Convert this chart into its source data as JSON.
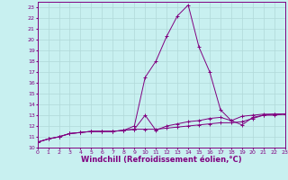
{
  "title": "",
  "xlabel": "Windchill (Refroidissement éolien,°C)",
  "ylabel": "",
  "background_color": "#c8f0f0",
  "line_color": "#800080",
  "grid_color": "#b0d8d8",
  "x_data": [
    0,
    1,
    2,
    3,
    4,
    5,
    6,
    7,
    8,
    9,
    10,
    11,
    12,
    13,
    14,
    15,
    16,
    17,
    18,
    19,
    20,
    21,
    22,
    23
  ],
  "series": [
    [
      10.5,
      10.8,
      11.0,
      11.3,
      11.4,
      11.5,
      11.5,
      11.5,
      11.6,
      11.7,
      11.7,
      11.7,
      11.8,
      11.9,
      12.0,
      12.1,
      12.2,
      12.3,
      12.3,
      12.4,
      12.7,
      13.0,
      13.1,
      13.1
    ],
    [
      10.5,
      10.8,
      11.0,
      11.3,
      11.4,
      11.5,
      11.5,
      11.5,
      11.6,
      12.0,
      16.5,
      18.0,
      20.3,
      22.2,
      23.2,
      19.3,
      17.0,
      13.5,
      12.5,
      12.1,
      12.8,
      13.0,
      13.0,
      13.1
    ],
    [
      10.5,
      10.8,
      11.0,
      11.3,
      11.4,
      11.5,
      11.5,
      11.5,
      11.6,
      11.7,
      13.0,
      11.6,
      12.0,
      12.2,
      12.4,
      12.5,
      12.7,
      12.8,
      12.5,
      12.9,
      13.0,
      13.1,
      13.1,
      13.1
    ]
  ],
  "xlim": [
    0,
    23
  ],
  "ylim": [
    10,
    23.5
  ],
  "yticks": [
    10,
    11,
    12,
    13,
    14,
    15,
    16,
    17,
    18,
    19,
    20,
    21,
    22,
    23
  ],
  "xticks": [
    0,
    1,
    2,
    3,
    4,
    5,
    6,
    7,
    8,
    9,
    10,
    11,
    12,
    13,
    14,
    15,
    16,
    17,
    18,
    19,
    20,
    21,
    22,
    23
  ],
  "fontsize_label": 5.5,
  "fontsize_tick": 4.5,
  "fontsize_xlabel": 6.0
}
